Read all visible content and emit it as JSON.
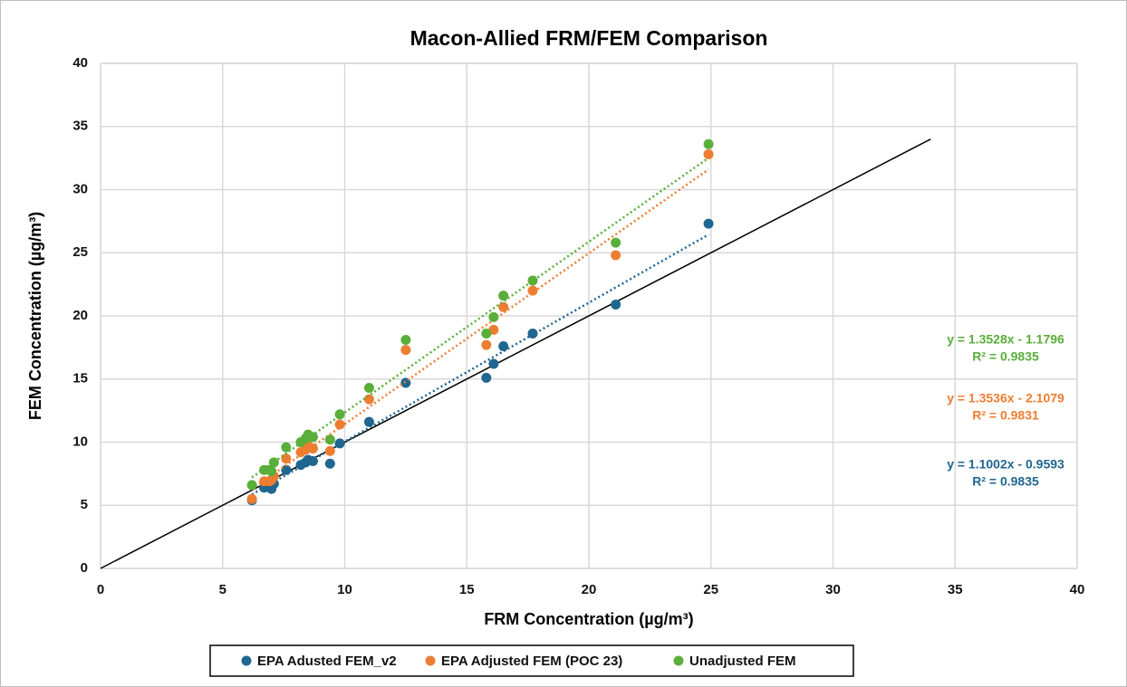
{
  "chart_data": {
    "type": "scatter",
    "title": "Macon-Allied FRM/FEM Comparison",
    "x_label": "FRM Concentration (µg/m³)",
    "y_label": "FEM Concentration (µg/m³)",
    "xlim": [
      0,
      40
    ],
    "xticks": [
      0,
      5,
      10,
      15,
      20,
      25,
      30,
      35,
      40
    ],
    "ylim": [
      0,
      40
    ],
    "yticks": [
      0,
      5,
      10,
      15,
      20,
      25,
      30,
      35,
      40
    ],
    "grid": true,
    "legend": "bottom",
    "reference_line": {
      "color": "#000000",
      "x": [
        0,
        34
      ],
      "y": [
        0,
        34
      ]
    },
    "series": [
      {
        "name": "EPA Adusted FEM_v2",
        "color": "#1f6690",
        "x": [
          6.2,
          6.7,
          6.9,
          7.0,
          7.1,
          7.6,
          8.2,
          8.4,
          8.5,
          8.7,
          9.4,
          9.8,
          11.0,
          12.5,
          15.8,
          16.1,
          16.5,
          17.7,
          21.1,
          24.9
        ],
        "values": [
          5.4,
          6.4,
          6.5,
          6.3,
          6.7,
          7.8,
          8.2,
          8.4,
          8.6,
          8.5,
          8.3,
          9.9,
          11.6,
          14.7,
          15.1,
          16.2,
          17.6,
          18.6,
          20.9,
          27.3
        ],
        "trendline": {
          "slope": 1.1002,
          "intercept": -0.9593,
          "label": "y = 1.1002x - 0.9593",
          "r2_label": "R² = 0.9835"
        }
      },
      {
        "name": "EPA Adjusted FEM (POC 23)",
        "color": "#ed7d31",
        "x": [
          6.2,
          6.7,
          6.9,
          7.0,
          7.1,
          7.6,
          8.2,
          8.4,
          8.5,
          8.7,
          9.4,
          9.8,
          11.0,
          12.5,
          15.8,
          16.1,
          16.5,
          17.7,
          21.1,
          24.9
        ],
        "values": [
          5.5,
          6.9,
          6.9,
          7.0,
          7.3,
          8.7,
          9.2,
          9.4,
          9.7,
          9.5,
          9.3,
          11.4,
          13.4,
          17.3,
          17.7,
          18.9,
          20.7,
          22.0,
          24.8,
          32.8
        ],
        "trendline": {
          "slope": 1.3536,
          "intercept": -2.1079,
          "label": "y = 1.3536x - 2.1079",
          "r2_label": "R² = 0.9831"
        }
      },
      {
        "name": "Unadjusted FEM",
        "color": "#5aae3a",
        "x": [
          6.2,
          6.7,
          6.9,
          7.0,
          7.1,
          7.6,
          8.2,
          8.4,
          8.5,
          8.7,
          9.4,
          9.8,
          11.0,
          12.5,
          15.8,
          16.1,
          16.5,
          17.7,
          21.1,
          24.9
        ],
        "values": [
          6.6,
          7.8,
          7.8,
          7.7,
          8.4,
          9.6,
          10.0,
          10.3,
          10.6,
          10.4,
          10.2,
          12.2,
          14.3,
          18.1,
          18.6,
          19.9,
          21.6,
          22.8,
          25.8,
          33.6
        ],
        "trendline": {
          "slope": 1.3528,
          "intercept": -1.1796,
          "label": "y = 1.3528x - 1.1796",
          "r2_label": "R² = 0.9835"
        }
      }
    ]
  }
}
